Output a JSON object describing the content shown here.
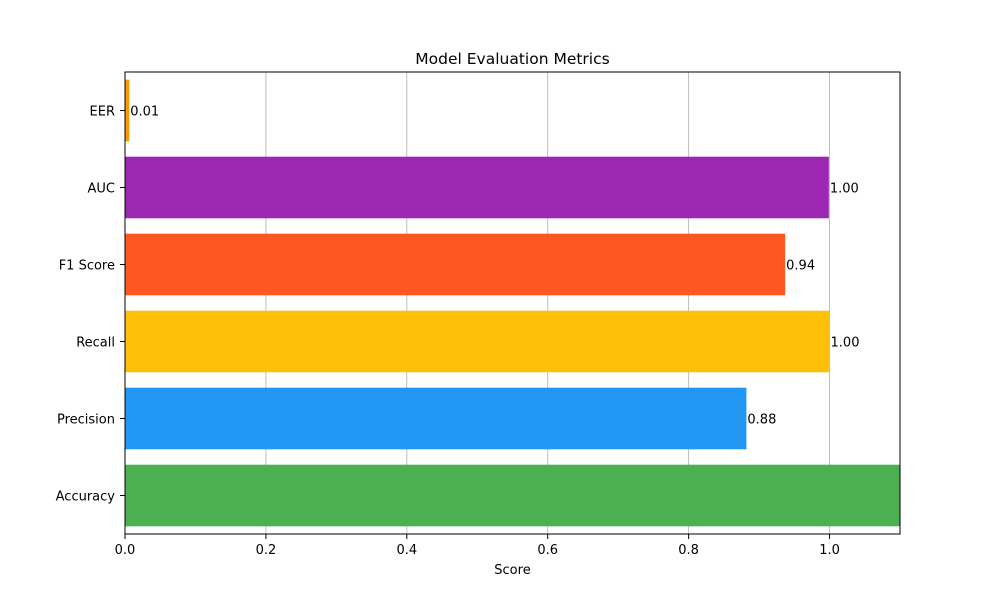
{
  "chart_data": {
    "type": "bar",
    "orientation": "horizontal",
    "title": "Model Evaluation Metrics",
    "xlabel": "Score",
    "ylabel": "",
    "xlim": [
      0,
      1.1
    ],
    "xticks": [
      0.0,
      0.2,
      0.4,
      0.6,
      0.8,
      1.0
    ],
    "xtick_labels": [
      "0.0",
      "0.2",
      "0.4",
      "0.6",
      "0.8",
      "1.0"
    ],
    "grid": "x-axis",
    "legend": "none",
    "categories": [
      "Accuracy",
      "Precision",
      "Recall",
      "F1 Score",
      "AUC",
      "EER"
    ],
    "values": [
      1.1,
      0.882,
      1.0,
      0.937,
      0.999,
      0.006
    ],
    "value_labels": [
      "",
      "0.88",
      "1.00",
      "0.94",
      "1.00",
      "0.01"
    ],
    "colors": [
      "#4CAF50",
      "#2196F3",
      "#FFC107",
      "#FF5722",
      "#9C27B0",
      "#FF9800"
    ]
  }
}
